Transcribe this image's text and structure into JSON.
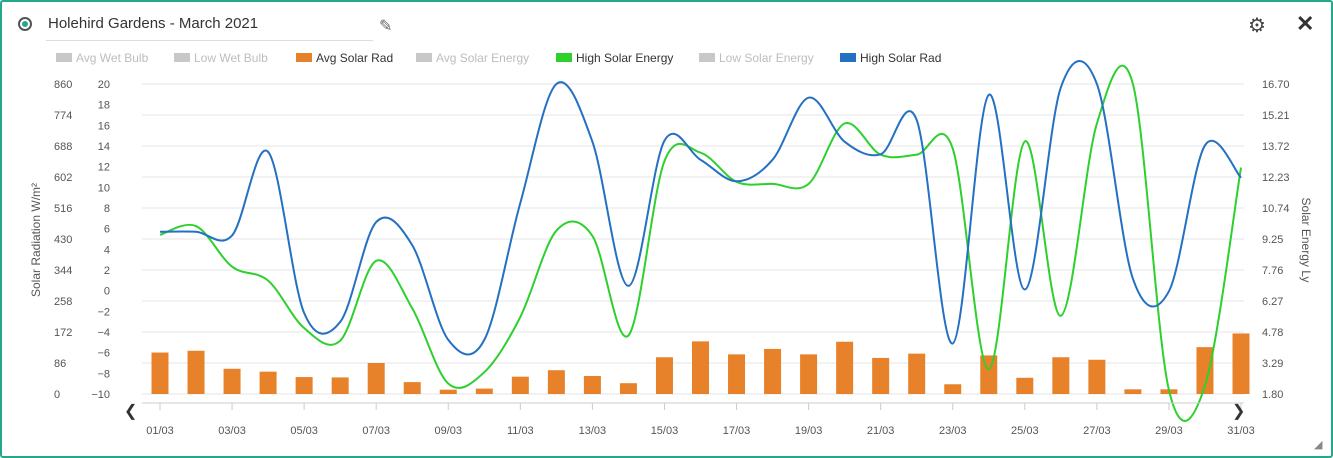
{
  "header": {
    "title": "Holehird Gardens - March 2021",
    "edit_icon": "pencil-icon",
    "settings_icon": "gear-icon",
    "close_icon": "close-icon"
  },
  "colors": {
    "avg_solar_rad": "#e8822a",
    "high_solar_energy": "#2ed02e",
    "high_solar_rad": "#2470c2",
    "disabled": "#c8c8c8"
  },
  "legend": [
    {
      "label": "Avg Wet Bulb",
      "color": "#c8c8c8",
      "enabled": false
    },
    {
      "label": "Low Wet Bulb",
      "color": "#c8c8c8",
      "enabled": false
    },
    {
      "label": "Avg Solar Rad",
      "color": "#e8822a",
      "enabled": true
    },
    {
      "label": "Avg Solar Energy",
      "color": "#c8c8c8",
      "enabled": false
    },
    {
      "label": "High Solar Energy",
      "color": "#2ed02e",
      "enabled": true
    },
    {
      "label": "Low Solar Energy",
      "color": "#c8c8c8",
      "enabled": false
    },
    {
      "label": "High Solar Rad",
      "color": "#2470c2",
      "enabled": true
    }
  ],
  "chart_data": {
    "type": "line",
    "x": [
      "01/03",
      "02/03",
      "03/03",
      "04/03",
      "05/03",
      "06/03",
      "07/03",
      "08/03",
      "09/03",
      "10/03",
      "11/03",
      "12/03",
      "13/03",
      "14/03",
      "15/03",
      "16/03",
      "17/03",
      "18/03",
      "19/03",
      "20/03",
      "21/03",
      "22/03",
      "23/03",
      "24/03",
      "25/03",
      "26/03",
      "27/03",
      "28/03",
      "29/03",
      "30/03",
      "31/03"
    ],
    "x_tick_labels": [
      "01/03",
      "03/03",
      "05/03",
      "07/03",
      "09/03",
      "11/03",
      "13/03",
      "15/03",
      "17/03",
      "19/03",
      "21/03",
      "23/03",
      "25/03",
      "27/03",
      "29/03",
      "31/03"
    ],
    "y_left_ticks": [
      "860",
      "774",
      "688",
      "602",
      "516",
      "430",
      "344",
      "258",
      "172",
      "86",
      "0"
    ],
    "y_mid_ticks": [
      "20",
      "18",
      "16",
      "14",
      "12",
      "10",
      "8",
      "6",
      "4",
      "2",
      "0",
      "−2",
      "−4",
      "−6",
      "−8",
      "−10"
    ],
    "y_right_ticks": [
      "16.70",
      "15.21",
      "13.72",
      "12.23",
      "10.74",
      "9.25",
      "7.76",
      "6.27",
      "4.78",
      "3.29",
      "1.80"
    ],
    "ylabel_left": "Solar Radiation W/m²",
    "ylabel_right": "Solar Energy Ly",
    "ylim_left": [
      0,
      860
    ],
    "ylim_right": [
      1.8,
      16.7
    ],
    "series": [
      {
        "name": "Avg Solar Rad",
        "type": "bar",
        "axis": "left",
        "values": [
          115,
          120,
          70,
          62,
          47,
          46,
          86,
          33,
          12,
          15,
          48,
          66,
          50,
          30,
          102,
          146,
          110,
          125,
          110,
          145,
          100,
          112,
          27,
          107,
          45,
          102,
          95,
          13,
          13,
          130,
          168
        ]
      },
      {
        "name": "High Solar Energy",
        "type": "line",
        "axis": "right",
        "values": [
          9.45,
          9.87,
          7.92,
          7.25,
          4.97,
          4.36,
          8.2,
          5.92,
          2.3,
          2.85,
          5.5,
          9.65,
          9.4,
          4.61,
          13.0,
          13.4,
          12.0,
          11.9,
          11.9,
          14.8,
          13.3,
          13.3,
          13.6,
          3.0,
          13.94,
          5.56,
          14.8,
          16.7,
          2.0,
          2.2,
          12.68
        ]
      },
      {
        "name": "High Solar Rad",
        "type": "line",
        "axis": "left",
        "values": [
          450,
          450,
          440,
          672,
          225,
          200,
          477,
          413,
          150,
          150,
          530,
          860,
          700,
          300,
          703,
          650,
          590,
          650,
          822,
          700,
          665,
          760,
          140,
          830,
          290,
          850,
          860,
          320,
          285,
          690,
          600
        ]
      }
    ]
  }
}
